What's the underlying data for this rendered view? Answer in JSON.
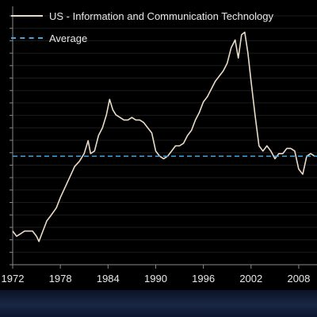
{
  "chart_data": {
    "type": "line",
    "title": "",
    "xlabel": "",
    "ylabel": "",
    "x_ticks": [
      "1972",
      "1978",
      "1984",
      "1990",
      "1996",
      "2002",
      "2008"
    ],
    "xlim": [
      1972,
      2010.3
    ],
    "ylim": [
      0,
      100
    ],
    "grid": true,
    "legend_position": "top-left",
    "series": [
      {
        "name": "US - Information and Communication Technology",
        "color": "#eadbc8",
        "style": "solid",
        "x": [
          1972.0,
          1972.5,
          1973.0,
          1973.5,
          1974.0,
          1974.5,
          1975.0,
          1975.3,
          1975.8,
          1976.3,
          1976.8,
          1977.5,
          1978.0,
          1978.6,
          1979.2,
          1979.8,
          1980.4,
          1981.0,
          1981.5,
          1981.8,
          1982.3,
          1982.8,
          1983.3,
          1983.8,
          1984.2,
          1984.6,
          1985.0,
          1985.5,
          1986.0,
          1986.5,
          1987.0,
          1987.5,
          1988.0,
          1988.5,
          1989.0,
          1989.5,
          1990.0,
          1990.5,
          1991.0,
          1991.5,
          1992.0,
          1992.5,
          1993.0,
          1993.5,
          1994.0,
          1994.5,
          1995.0,
          1995.5,
          1996.0,
          1996.5,
          1997.0,
          1997.5,
          1998.0,
          1998.5,
          1999.0,
          1999.5,
          2000.0,
          2000.4,
          2000.8,
          2001.2,
          2001.6,
          2002.0,
          2002.5,
          2003.0,
          2003.5,
          2004.0,
          2004.5,
          2005.0,
          2005.5,
          2006.0,
          2006.5,
          2007.0,
          2007.5,
          2008.0,
          2008.5,
          2009.0,
          2009.5,
          2010.0
        ],
        "values": [
          13,
          11,
          12,
          13,
          13,
          13,
          11,
          9,
          13,
          17,
          19,
          22,
          26,
          30,
          34,
          38,
          40,
          43,
          48,
          43,
          44,
          50,
          53,
          58,
          64,
          60,
          58,
          57,
          56,
          56,
          57,
          56,
          56,
          55,
          53,
          51,
          44,
          42,
          41,
          42,
          44,
          46,
          46,
          47,
          50,
          52,
          56,
          59,
          63,
          65,
          68,
          71,
          73,
          75,
          78,
          84,
          87,
          80,
          89,
          90,
          82,
          71,
          58,
          46,
          44,
          46,
          44,
          41,
          43,
          43,
          45,
          45,
          44,
          37,
          35,
          42,
          43,
          42
        ]
      },
      {
        "name": "Average",
        "color": "#4aa3d8",
        "style": "dashed",
        "x": [
          1972,
          2010.3
        ],
        "values": [
          42,
          42
        ]
      }
    ]
  }
}
